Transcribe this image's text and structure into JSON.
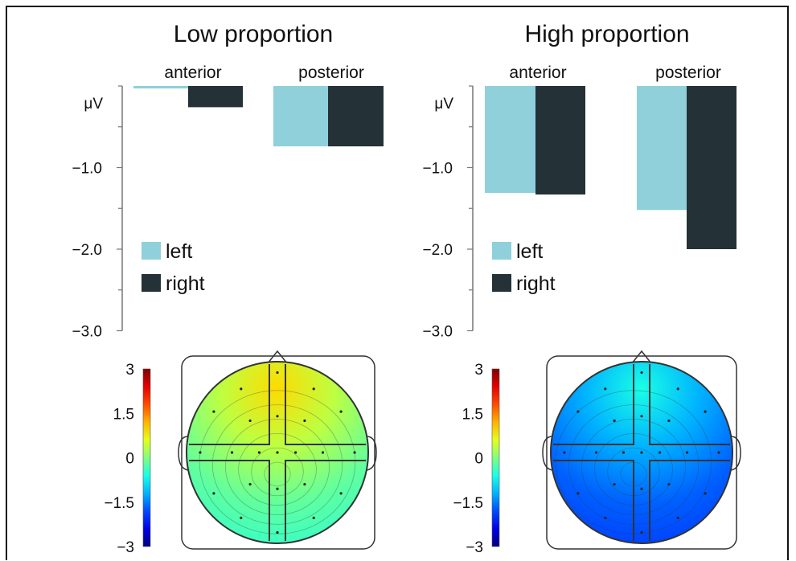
{
  "colors": {
    "left": "#8fd0db",
    "right": "#243237",
    "axis": "#777777",
    "head_outline": "#333333",
    "frame": "#111111"
  },
  "chart_data": [
    {
      "type": "bar",
      "title": "Low proportion",
      "unit_label": "μV",
      "categories": [
        "anterior",
        "posterior"
      ],
      "series": [
        {
          "name": "left",
          "values": [
            -0.03,
            -0.74
          ]
        },
        {
          "name": "right",
          "values": [
            -0.26,
            -0.74
          ]
        }
      ],
      "yticks": [
        "−1.0",
        "−2.0",
        "−3.0"
      ],
      "ylim": [
        -3.0,
        0
      ],
      "legend": "lower-left",
      "colorbar": {
        "ticks": [
          "3",
          "1.5",
          "0",
          "−1.5",
          "−3"
        ],
        "range": [
          -3,
          3
        ],
        "colormap": "jet"
      },
      "topomap": {
        "dominant": "cyan-green",
        "mean_level": -0.4
      }
    },
    {
      "type": "bar",
      "title": "High proportion",
      "unit_label": "μV",
      "categories": [
        "anterior",
        "posterior"
      ],
      "series": [
        {
          "name": "left",
          "values": [
            -1.31,
            -1.52
          ]
        },
        {
          "name": "right",
          "values": [
            -1.33,
            -2.0
          ]
        }
      ],
      "yticks": [
        "−1.0",
        "−2.0",
        "−3.0"
      ],
      "ylim": [
        -3.0,
        0
      ],
      "legend": "lower-left",
      "colorbar": {
        "ticks": [
          "3",
          "1.5",
          "0",
          "−1.5",
          "−3"
        ],
        "range": [
          -3,
          3
        ],
        "colormap": "jet"
      },
      "topomap": {
        "dominant": "blue",
        "mean_level": -1.6
      }
    }
  ]
}
